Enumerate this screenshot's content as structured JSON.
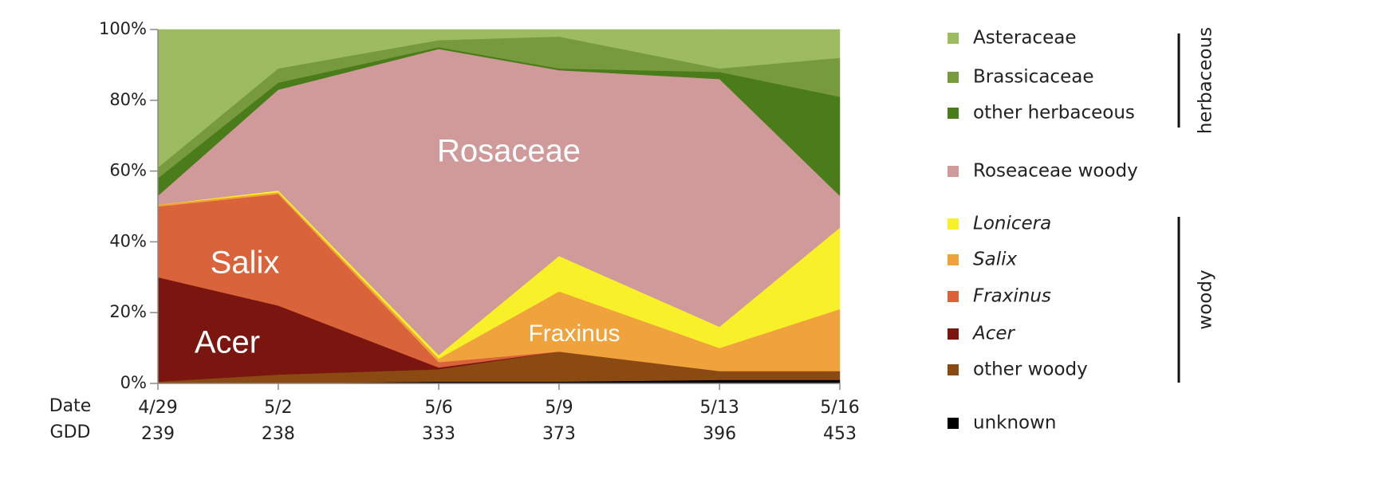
{
  "chart_data": {
    "type": "stacked_area",
    "x_label": "Date",
    "row2_label": "GDD",
    "categories": [
      "4/29",
      "5/2",
      "5/6",
      "5/9",
      "5/13",
      "5/16"
    ],
    "gdd": [
      239,
      238,
      333,
      373,
      396,
      453
    ],
    "ylim": [
      0,
      100
    ],
    "yticks": [
      {
        "value": 0,
        "label": "0%"
      },
      {
        "value": 20,
        "label": "20%"
      },
      {
        "value": 40,
        "label": "40%"
      },
      {
        "value": 60,
        "label": "60%"
      },
      {
        "value": 80,
        "label": "80%"
      },
      {
        "value": 100,
        "label": "100%"
      }
    ],
    "series": [
      {
        "name": "Asteraceae",
        "color": "#9dbb61",
        "italic": false,
        "values": [
          39,
          11,
          3,
          2,
          11,
          8
        ]
      },
      {
        "name": "Brassicaceae",
        "color": "#779a3d",
        "italic": false,
        "values": [
          3,
          4,
          2,
          9,
          1,
          11
        ]
      },
      {
        "name": "other herbaceous",
        "color": "#4a7c1a",
        "italic": false,
        "values": [
          5,
          2,
          0.5,
          0.5,
          2,
          28
        ]
      },
      {
        "name": "Roseaceae woody",
        "color": "#d09a9a",
        "italic": false,
        "values": [
          2.5,
          28.5,
          86.5,
          52.5,
          70,
          9
        ]
      },
      {
        "name": "Lonicera",
        "color": "#f8f12a",
        "italic": true,
        "values": [
          0,
          0.5,
          1,
          10,
          6,
          23
        ]
      },
      {
        "name": "Salix",
        "color": "#f0a23c",
        "italic": true,
        "values": [
          0.5,
          0.5,
          1,
          17,
          6.5,
          17.5
        ]
      },
      {
        "name": "Fraxinus",
        "color": "#d9633a",
        "italic": true,
        "values": [
          20,
          31.5,
          1.5,
          0,
          0,
          0
        ]
      },
      {
        "name": "Acer",
        "color": "#7a1510",
        "italic": true,
        "values": [
          29.5,
          19.5,
          0.5,
          0,
          0,
          0
        ]
      },
      {
        "name": "other woody",
        "color": "#8b4a12",
        "italic": false,
        "values": [
          0.5,
          2.5,
          3.5,
          8.5,
          2.5,
          2.5
        ]
      },
      {
        "name": "unknown",
        "color": "#000000",
        "italic": false,
        "values": [
          0,
          0,
          0.5,
          0.5,
          1,
          1
        ]
      }
    ],
    "legend_groups": [
      "herbaceous",
      "woody"
    ],
    "annotations": [
      "Rosaceae",
      "Salix",
      "Acer",
      "Fraxinus"
    ]
  }
}
